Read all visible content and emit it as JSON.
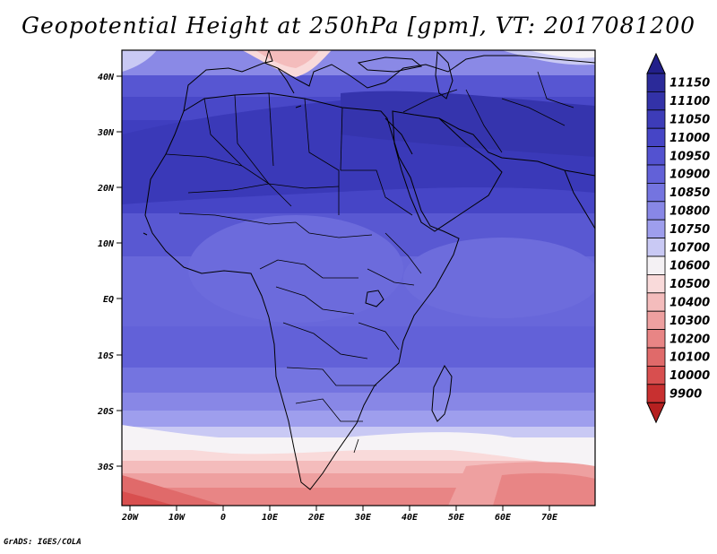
{
  "title": "Geopotential Height at 250hPa [gpm], VT: 2017081200",
  "credit": "GrADS: IGES/COLA",
  "lon_labels": [
    "20W",
    "10W",
    "0",
    "10E",
    "20E",
    "30E",
    "40E",
    "50E",
    "60E",
    "70E"
  ],
  "lat_labels": [
    "40N",
    "30N",
    "20N",
    "10N",
    "EQ",
    "10S",
    "20S",
    "30S"
  ],
  "colorbar": {
    "labels": [
      "11150",
      "11100",
      "11050",
      "11000",
      "10950",
      "10900",
      "10850",
      "10800",
      "10750",
      "10700",
      "10600",
      "10500",
      "10400",
      "10300",
      "10200",
      "10100",
      "10000",
      "9900"
    ],
    "colors": [
      "#2b2a99",
      "#3332a8",
      "#3d3cb8",
      "#4645c6",
      "#5352d0",
      "#6261d8",
      "#7474e0",
      "#8887e6",
      "#9e9eed",
      "#c9c9f4",
      "#f4f1f4",
      "#f9dada",
      "#f4bcbc",
      "#eea0a0",
      "#e88585",
      "#e06a6a",
      "#d84f4f",
      "#c83030"
    ],
    "top_cap": "#221f8a",
    "bottom_cap": "#b52020"
  }
}
